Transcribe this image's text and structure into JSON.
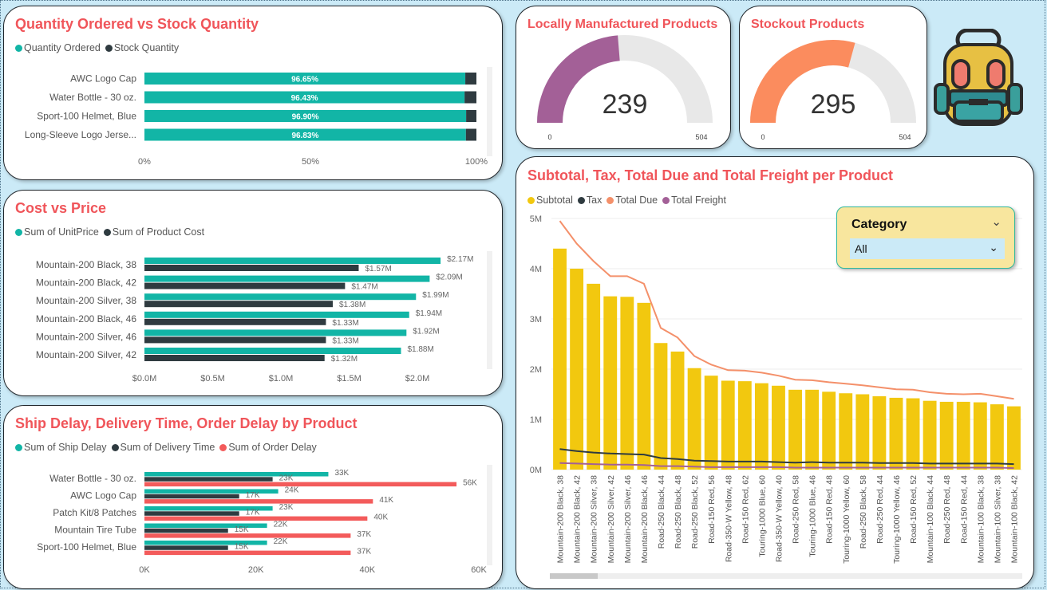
{
  "qty": {
    "title": "Quantity Ordered vs Stock Quantity",
    "legend": [
      {
        "label": "Quantity Ordered",
        "color": "#12b5a6"
      },
      {
        "label": "Stock Quantity",
        "color": "#2f3b40"
      }
    ],
    "chart_data": {
      "type": "bar",
      "stacked": "100%",
      "categories": [
        "AWC Logo Cap",
        "Water Bottle - 30 oz.",
        "Sport-100 Helmet, Blue",
        "Long-Sleeve Logo Jerse..."
      ],
      "series": [
        {
          "name": "Quantity Ordered",
          "values": [
            96.65,
            96.43,
            96.9,
            96.83
          ]
        },
        {
          "name": "Stock Quantity",
          "values": [
            3.35,
            3.57,
            3.1,
            3.17
          ]
        }
      ],
      "data_labels": [
        "96.65%",
        "96.43%",
        "96.90%",
        "96.83%"
      ],
      "ticks": [
        "0%",
        "50%",
        "100%"
      ],
      "xlim": [
        0,
        100
      ]
    }
  },
  "cost": {
    "title": "Cost vs Price",
    "legend": [
      {
        "label": "Sum of UnitPrice",
        "color": "#12b5a6"
      },
      {
        "label": "Sum of Product Cost",
        "color": "#2f3b40"
      }
    ],
    "chart_data": {
      "type": "bar",
      "categories": [
        "Mountain-200 Black, 38",
        "Mountain-200 Black, 42",
        "Mountain-200 Silver, 38",
        "Mountain-200 Black, 46",
        "Mountain-200 Silver, 46",
        "Mountain-200 Silver, 42"
      ],
      "series": [
        {
          "name": "Sum of UnitPrice",
          "values": [
            2.17,
            2.09,
            1.99,
            1.94,
            1.92,
            1.88
          ],
          "labels": [
            "$2.17M",
            "$2.09M",
            "$1.99M",
            "$1.94M",
            "$1.92M",
            "$1.88M"
          ]
        },
        {
          "name": "Sum of Product Cost",
          "values": [
            1.57,
            1.47,
            1.38,
            1.33,
            1.33,
            1.32
          ],
          "labels": [
            "$1.57M",
            "$1.47M",
            "$1.38M",
            "$1.33M",
            "$1.33M",
            "$1.32M"
          ]
        }
      ],
      "ticks": [
        "$0.0M",
        "$0.5M",
        "$1.0M",
        "$1.5M",
        "$2.0M"
      ],
      "xlim": [
        0,
        2.4
      ]
    }
  },
  "ship": {
    "title": "Ship Delay, Delivery Time, Order Delay by Product",
    "legend": [
      {
        "label": "Sum of Ship Delay",
        "color": "#12b5a6"
      },
      {
        "label": "Sum of Delivery Time",
        "color": "#2f3b40"
      },
      {
        "label": "Sum of Order Delay",
        "color": "#f35b5b"
      }
    ],
    "chart_data": {
      "type": "bar",
      "categories": [
        "Water Bottle - 30 oz.",
        "AWC Logo Cap",
        "Patch Kit/8 Patches",
        "Mountain Tire Tube",
        "Sport-100 Helmet, Blue"
      ],
      "series": [
        {
          "name": "Sum of Ship Delay",
          "values": [
            33,
            24,
            23,
            22,
            22
          ],
          "labels": [
            "33K",
            "24K",
            "23K",
            "22K",
            "22K"
          ]
        },
        {
          "name": "Sum of Delivery Time",
          "values": [
            23,
            17,
            17,
            15,
            15
          ],
          "labels": [
            "23K",
            "17K",
            "17K",
            "15K",
            "15K"
          ]
        },
        {
          "name": "Sum of Order Delay",
          "values": [
            56,
            41,
            40,
            37,
            37
          ],
          "labels": [
            "56K",
            "41K",
            "40K",
            "37K",
            "37K"
          ]
        }
      ],
      "ticks": [
        "0K",
        "20K",
        "40K",
        "60K"
      ],
      "xlim": [
        0,
        60
      ]
    }
  },
  "gauge_local": {
    "title": "Locally Manufactured Products",
    "value": 239,
    "min": 0,
    "max": 504,
    "value_label": "239",
    "min_label": "0",
    "max_label": "504",
    "color": "#a36097"
  },
  "gauge_stockout": {
    "title": "Stockout Products",
    "value": 295,
    "min": 0,
    "max": 504,
    "value_label": "295",
    "min_label": "0",
    "max_label": "504",
    "color": "#fb8c5e"
  },
  "backpack_icon": "backpack-icon",
  "main": {
    "title": "Subtotal, Tax, Total Due and Total Freight per Product",
    "legend": [
      {
        "label": "Subtotal",
        "color": "#f2c80f"
      },
      {
        "label": "Tax",
        "color": "#2f3b40"
      },
      {
        "label": "Total Due",
        "color": "#f4906a"
      },
      {
        "label": "Total Freight",
        "color": "#a36097"
      }
    ],
    "chart_data": {
      "type": "bar",
      "combo": "bar+line",
      "categories": [
        "Mountain-200 Black, 38",
        "Mountain-200 Black, 42",
        "Mountain-200 Silver, 38",
        "Mountain-200 Silver, 42",
        "Mountain-200 Silver, 46",
        "Mountain-200 Black, 46",
        "Road-250 Black, 44",
        "Road-250 Black, 48",
        "Road-250 Black, 52",
        "Road-150 Red, 56",
        "Road-350-W Yellow, 48",
        "Road-150 Red, 62",
        "Touring-1000 Blue, 60",
        "Road-350-W Yellow, 40",
        "Road-250 Red, 58",
        "Touring-1000 Blue, 46",
        "Road-150 Red, 48",
        "Touring-1000 Yellow, 60",
        "Road-250 Black, 58",
        "Road-250 Red, 44",
        "Touring-1000 Yellow, 46",
        "Road-150 Red, 52",
        "Mountain-100 Black, 44",
        "Road-250 Red, 48",
        "Road-150 Red, 44",
        "Mountain-100 Black, 38",
        "Mountain-100 Silver, 38",
        "Mountain-100 Black, 42"
      ],
      "series": [
        {
          "name": "Subtotal",
          "values": [
            4.4,
            4.0,
            3.7,
            3.45,
            3.44,
            3.32,
            2.52,
            2.35,
            2.02,
            1.87,
            1.77,
            1.76,
            1.72,
            1.67,
            1.59,
            1.59,
            1.55,
            1.52,
            1.5,
            1.46,
            1.43,
            1.42,
            1.37,
            1.35,
            1.35,
            1.34,
            1.3,
            1.26
          ]
        },
        {
          "name": "Tax",
          "values": [
            0.41,
            0.37,
            0.34,
            0.32,
            0.31,
            0.3,
            0.23,
            0.21,
            0.18,
            0.17,
            0.16,
            0.16,
            0.16,
            0.15,
            0.14,
            0.15,
            0.14,
            0.14,
            0.14,
            0.13,
            0.13,
            0.13,
            0.12,
            0.12,
            0.12,
            0.12,
            0.12,
            0.11
          ]
        },
        {
          "name": "Total Due",
          "values": [
            4.95,
            4.5,
            4.15,
            3.85,
            3.85,
            3.7,
            2.82,
            2.63,
            2.26,
            2.09,
            1.98,
            1.97,
            1.93,
            1.87,
            1.79,
            1.78,
            1.74,
            1.71,
            1.68,
            1.64,
            1.6,
            1.59,
            1.54,
            1.51,
            1.5,
            1.51,
            1.46,
            1.41
          ]
        },
        {
          "name": "Total Freight",
          "values": [
            0.13,
            0.12,
            0.11,
            0.1,
            0.1,
            0.09,
            0.07,
            0.07,
            0.06,
            0.05,
            0.05,
            0.05,
            0.05,
            0.05,
            0.04,
            0.04,
            0.04,
            0.04,
            0.04,
            0.04,
            0.04,
            0.04,
            0.04,
            0.04,
            0.04,
            0.04,
            0.04,
            0.03
          ]
        }
      ],
      "yticks": [
        "0M",
        "1M",
        "2M",
        "3M",
        "4M",
        "5M"
      ],
      "ylim": [
        0,
        5
      ]
    }
  },
  "slicer": {
    "title": "Category",
    "value": "All"
  }
}
